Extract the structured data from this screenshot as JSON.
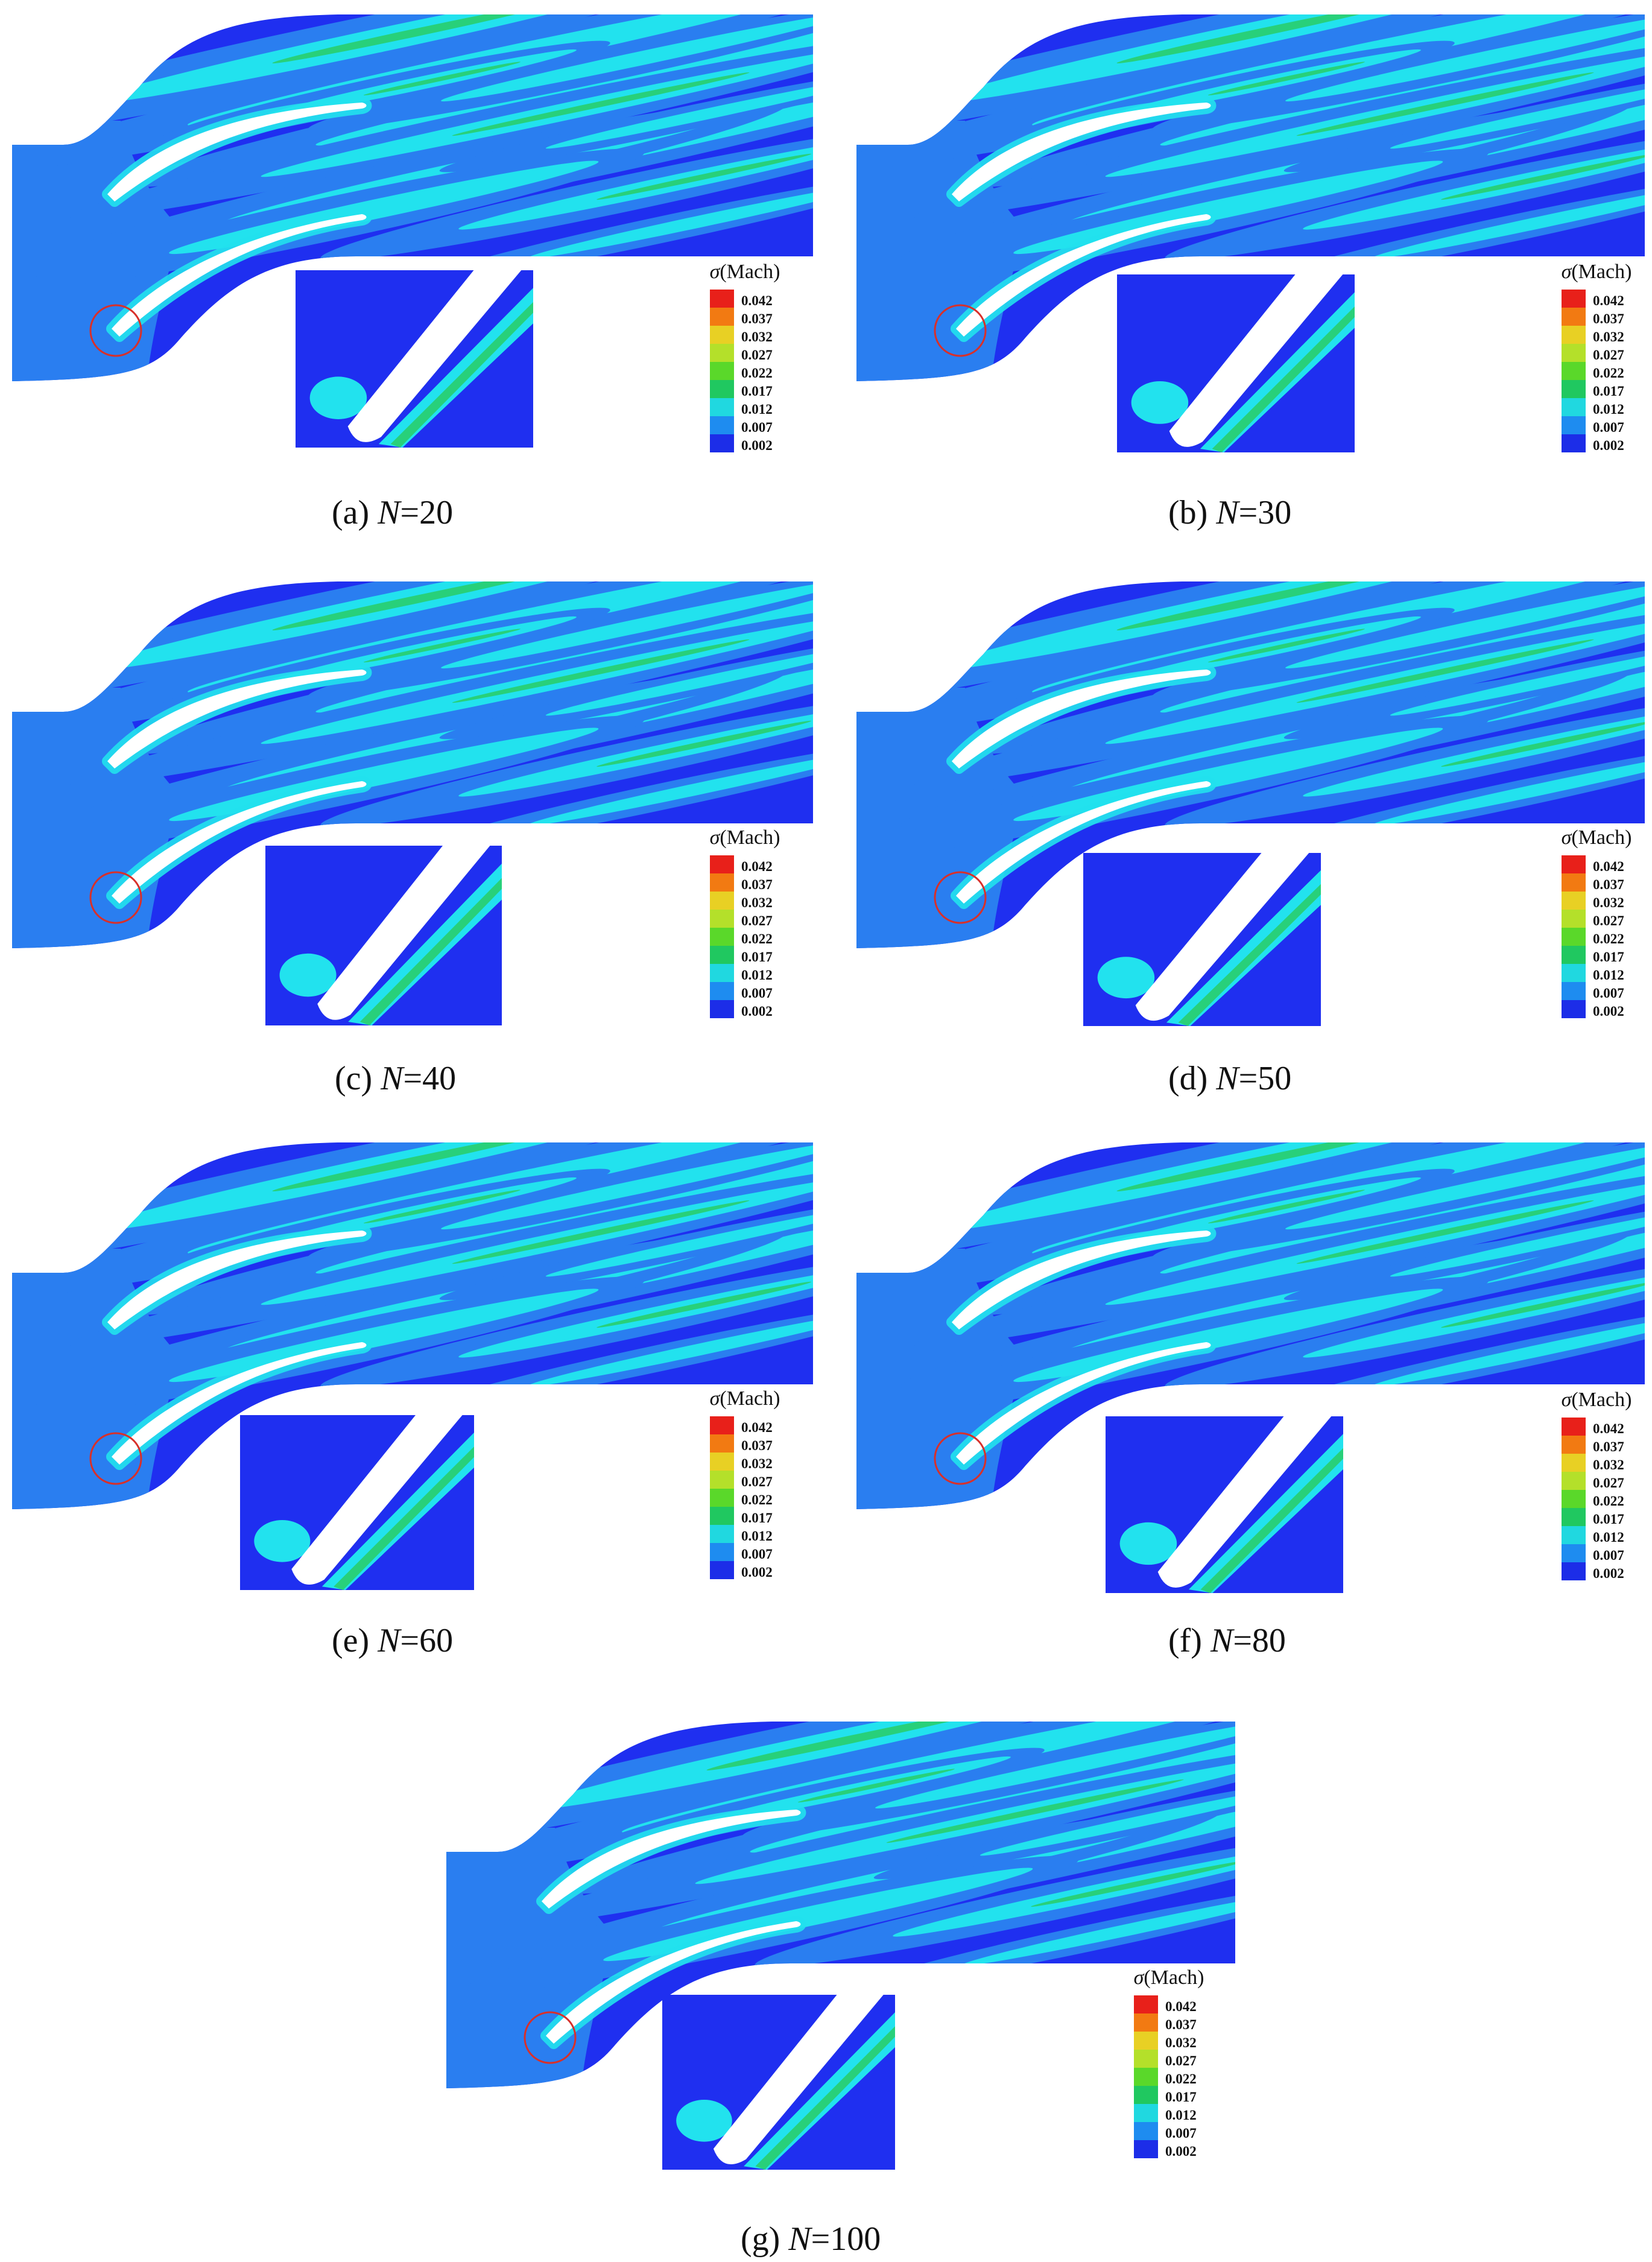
{
  "colorbar": {
    "title_symbol": "σ",
    "title_unit": "(Mach)",
    "levels": [
      "0.042",
      "0.037",
      "0.032",
      "0.027",
      "0.022",
      "0.017",
      "0.012",
      "0.007",
      "0.002"
    ],
    "colors": [
      "#e8201a",
      "#f27a12",
      "#e8d024",
      "#b4e02a",
      "#5ad82a",
      "#20c860",
      "#20d8e0",
      "#1e8cf0",
      "#1c2de8"
    ]
  },
  "colors": {
    "background": "#1f2ff0",
    "inlet": "#2a7ef0",
    "cyan": "#22e2ee",
    "green": "#28d07a",
    "blade": "#ffffff",
    "marker": "#d8302a"
  },
  "panels": [
    {
      "id": "a",
      "prefix": "(a) ",
      "var": "N",
      "suffix": "=20"
    },
    {
      "id": "b",
      "prefix": "(b) ",
      "var": "N",
      "suffix": "=30"
    },
    {
      "id": "c",
      "prefix": "(c) ",
      "var": "N",
      "suffix": "=40"
    },
    {
      "id": "d",
      "prefix": "(d) ",
      "var": "N",
      "suffix": "=50"
    },
    {
      "id": "e",
      "prefix": "(e) ",
      "var": "N",
      "suffix": "=60"
    },
    {
      "id": "f",
      "prefix": "(f) ",
      "var": "N",
      "suffix": "=80"
    },
    {
      "id": "g",
      "prefix": "(g) ",
      "var": "N",
      "suffix": "=100"
    }
  ]
}
